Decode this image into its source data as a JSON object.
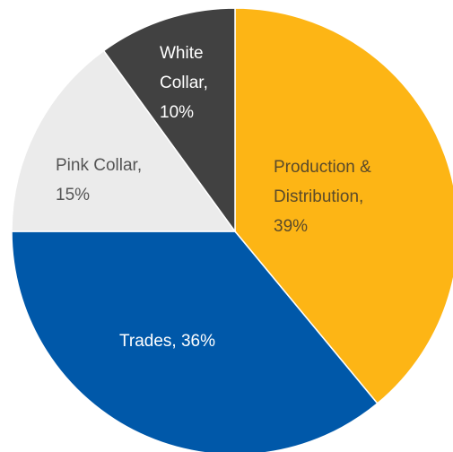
{
  "chart_data": {
    "type": "pie",
    "values": [
      39,
      36,
      15,
      10
    ],
    "value_labels": [
      "Production & Distribution, 39%",
      "Trades, 36%",
      "Pink Collar, 15%",
      "White Collar, 10%"
    ],
    "colors": [
      "#FDB515",
      "#0058A9",
      "#EBEBEB",
      "#414141"
    ],
    "label_colors": [
      "#5A4A2A",
      "#FFFFFF",
      "#555555",
      "#FFFFFF"
    ],
    "start_angle": 0,
    "direction": "clockwise"
  }
}
